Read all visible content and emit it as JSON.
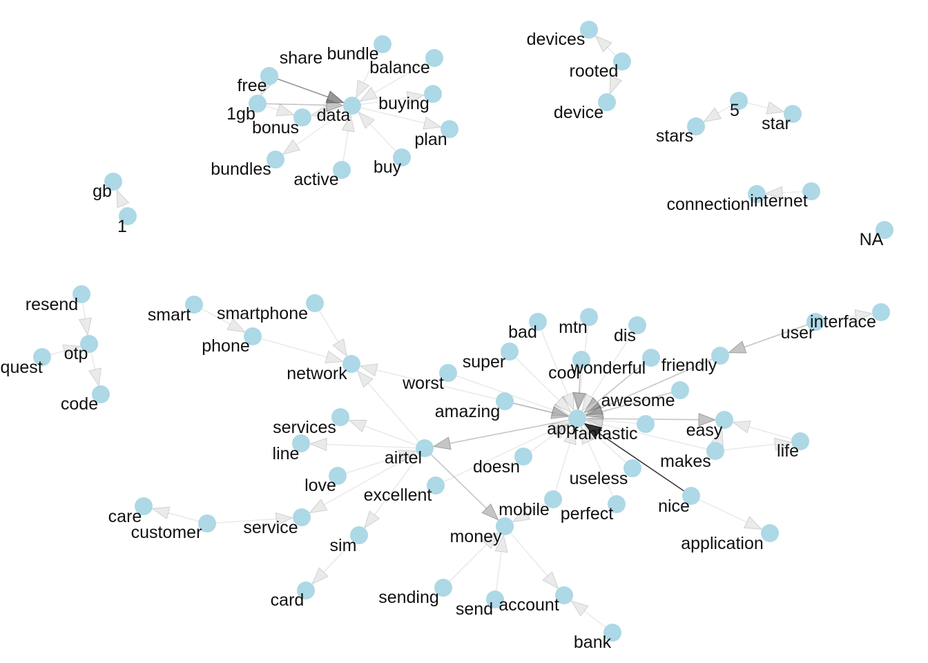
{
  "graph": {
    "node_color": "#ADD8E6",
    "edge_color": "#7f7f7f",
    "nodes": [
      {
        "id": "share",
        "label": "share"
      },
      {
        "id": "bundle",
        "label": "bundle"
      },
      {
        "id": "balance",
        "label": "balance"
      },
      {
        "id": "free",
        "label": "free"
      },
      {
        "id": "buying",
        "label": "buying"
      },
      {
        "id": "1gb",
        "label": "1gb"
      },
      {
        "id": "data",
        "label": "data"
      },
      {
        "id": "bonus",
        "label": "bonus"
      },
      {
        "id": "plan",
        "label": "plan"
      },
      {
        "id": "buy",
        "label": "buy"
      },
      {
        "id": "bundles",
        "label": "bundles"
      },
      {
        "id": "active",
        "label": "active"
      },
      {
        "id": "devices",
        "label": "devices"
      },
      {
        "id": "rooted",
        "label": "rooted"
      },
      {
        "id": "device",
        "label": "device"
      },
      {
        "id": "5",
        "label": "5"
      },
      {
        "id": "star",
        "label": "star"
      },
      {
        "id": "stars",
        "label": "stars"
      },
      {
        "id": "connection",
        "label": "connection"
      },
      {
        "id": "internet",
        "label": "internet"
      },
      {
        "id": "NA",
        "label": "NA"
      },
      {
        "id": "gb",
        "label": "gb"
      },
      {
        "id": "1",
        "label": "1"
      },
      {
        "id": "resend",
        "label": "resend"
      },
      {
        "id": "otp",
        "label": "otp"
      },
      {
        "id": "request",
        "label": "request"
      },
      {
        "id": "code",
        "label": "code"
      },
      {
        "id": "smart",
        "label": "smart"
      },
      {
        "id": "smartphone",
        "label": "smartphone"
      },
      {
        "id": "phone",
        "label": "phone"
      },
      {
        "id": "network",
        "label": "network"
      },
      {
        "id": "bad",
        "label": "bad"
      },
      {
        "id": "mtn",
        "label": "mtn"
      },
      {
        "id": "dis",
        "label": "dis"
      },
      {
        "id": "interface",
        "label": "interface"
      },
      {
        "id": "user",
        "label": "user"
      },
      {
        "id": "super",
        "label": "super"
      },
      {
        "id": "cool",
        "label": "cool"
      },
      {
        "id": "wonderful",
        "label": "wonderful"
      },
      {
        "id": "friendly",
        "label": "friendly"
      },
      {
        "id": "worst",
        "label": "worst"
      },
      {
        "id": "awesome",
        "label": "awesome"
      },
      {
        "id": "amazing",
        "label": "amazing"
      },
      {
        "id": "app",
        "label": "app"
      },
      {
        "id": "fantastic",
        "label": "fantastic"
      },
      {
        "id": "easy",
        "label": "easy"
      },
      {
        "id": "services",
        "label": "services"
      },
      {
        "id": "line",
        "label": "line"
      },
      {
        "id": "airtel",
        "label": "airtel"
      },
      {
        "id": "life",
        "label": "life"
      },
      {
        "id": "makes",
        "label": "makes"
      },
      {
        "id": "doesn",
        "label": "doesn"
      },
      {
        "id": "love",
        "label": "love"
      },
      {
        "id": "useless",
        "label": "useless"
      },
      {
        "id": "excellent",
        "label": "excellent"
      },
      {
        "id": "nice",
        "label": "nice"
      },
      {
        "id": "care",
        "label": "care"
      },
      {
        "id": "mobile",
        "label": "mobile"
      },
      {
        "id": "perfect",
        "label": "perfect"
      },
      {
        "id": "customer",
        "label": "customer"
      },
      {
        "id": "service",
        "label": "service"
      },
      {
        "id": "money",
        "label": "money"
      },
      {
        "id": "sim",
        "label": "sim"
      },
      {
        "id": "application",
        "label": "application"
      },
      {
        "id": "card",
        "label": "card"
      },
      {
        "id": "sending",
        "label": "sending"
      },
      {
        "id": "send",
        "label": "send"
      },
      {
        "id": "account",
        "label": "account"
      },
      {
        "id": "bank",
        "label": "bank"
      }
    ],
    "edges": [
      {
        "from": "free",
        "to": "data",
        "weight": 3
      },
      {
        "from": "1gb",
        "to": "data",
        "weight": 2
      },
      {
        "from": "share",
        "to": "data",
        "weight": 1
      },
      {
        "from": "bundle",
        "to": "data",
        "weight": 1
      },
      {
        "from": "balance",
        "to": "data",
        "weight": 1
      },
      {
        "from": "data",
        "to": "buying",
        "weight": 1
      },
      {
        "from": "data",
        "to": "plan",
        "weight": 1
      },
      {
        "from": "buy",
        "to": "data",
        "weight": 1
      },
      {
        "from": "active",
        "to": "data",
        "weight": 1
      },
      {
        "from": "data",
        "to": "bundles",
        "weight": 1
      },
      {
        "from": "data",
        "to": "bonus",
        "weight": 1
      },
      {
        "from": "free",
        "to": "1gb",
        "weight": 1
      },
      {
        "from": "1gb",
        "to": "bonus",
        "weight": 1
      },
      {
        "from": "rooted",
        "to": "devices",
        "weight": 1
      },
      {
        "from": "rooted",
        "to": "device",
        "weight": 1
      },
      {
        "from": "5",
        "to": "star",
        "weight": 1
      },
      {
        "from": "5",
        "to": "stars",
        "weight": 1
      },
      {
        "from": "internet",
        "to": "connection",
        "weight": 1
      },
      {
        "from": "1",
        "to": "gb",
        "weight": 1
      },
      {
        "from": "resend",
        "to": "otp",
        "weight": 1
      },
      {
        "from": "request",
        "to": "otp",
        "weight": 1
      },
      {
        "from": "otp",
        "to": "code",
        "weight": 1
      },
      {
        "from": "smart",
        "to": "phone",
        "weight": 1
      },
      {
        "from": "smartphone",
        "to": "network",
        "weight": 1
      },
      {
        "from": "phone",
        "to": "network",
        "weight": 1
      },
      {
        "from": "app",
        "to": "network",
        "weight": 1
      },
      {
        "from": "airtel",
        "to": "network",
        "weight": 1
      },
      {
        "from": "bad",
        "to": "app",
        "weight": 1
      },
      {
        "from": "mtn",
        "to": "app",
        "weight": 1
      },
      {
        "from": "dis",
        "to": "app",
        "weight": 1
      },
      {
        "from": "super",
        "to": "app",
        "weight": 1
      },
      {
        "from": "cool",
        "to": "app",
        "weight": 2
      },
      {
        "from": "wonderful",
        "to": "app",
        "weight": 2
      },
      {
        "from": "friendly",
        "to": "app",
        "weight": 2
      },
      {
        "from": "worst",
        "to": "app",
        "weight": 1
      },
      {
        "from": "awesome",
        "to": "app",
        "weight": 2
      },
      {
        "from": "amazing",
        "to": "app",
        "weight": 2
      },
      {
        "from": "fantastic",
        "to": "app",
        "weight": 1
      },
      {
        "from": "doesn",
        "to": "app",
        "weight": 1
      },
      {
        "from": "useless",
        "to": "app",
        "weight": 1
      },
      {
        "from": "perfect",
        "to": "app",
        "weight": 1
      },
      {
        "from": "excellent",
        "to": "app",
        "weight": 1
      },
      {
        "from": "mobile",
        "to": "app",
        "weight": 1
      },
      {
        "from": "makes",
        "to": "app",
        "weight": 1
      },
      {
        "from": "nice",
        "to": "app",
        "weight": 4
      },
      {
        "from": "app",
        "to": "easy",
        "weight": 2
      },
      {
        "from": "app",
        "to": "airtel",
        "weight": 2
      },
      {
        "from": "user",
        "to": "friendly",
        "weight": 2
      },
      {
        "from": "user",
        "to": "interface",
        "weight": 1
      },
      {
        "from": "life",
        "to": "easy",
        "weight": 1
      },
      {
        "from": "makes",
        "to": "easy",
        "weight": 1
      },
      {
        "from": "makes",
        "to": "life",
        "weight": 1
      },
      {
        "from": "airtel",
        "to": "services",
        "weight": 1
      },
      {
        "from": "airtel",
        "to": "line",
        "weight": 1
      },
      {
        "from": "love",
        "to": "airtel",
        "weight": 1
      },
      {
        "from": "airtel",
        "to": "money",
        "weight": 2
      },
      {
        "from": "airtel",
        "to": "sim",
        "weight": 1
      },
      {
        "from": "airtel",
        "to": "service",
        "weight": 1
      },
      {
        "from": "customer",
        "to": "care",
        "weight": 1
      },
      {
        "from": "customer",
        "to": "service",
        "weight": 1
      },
      {
        "from": "nice",
        "to": "application",
        "weight": 1
      },
      {
        "from": "mobile",
        "to": "money",
        "weight": 1
      },
      {
        "from": "sending",
        "to": "money",
        "weight": 1
      },
      {
        "from": "send",
        "to": "money",
        "weight": 1
      },
      {
        "from": "money",
        "to": "account",
        "weight": 1
      },
      {
        "from": "bank",
        "to": "account",
        "weight": 1
      },
      {
        "from": "sim",
        "to": "card",
        "weight": 1
      }
    ]
  }
}
